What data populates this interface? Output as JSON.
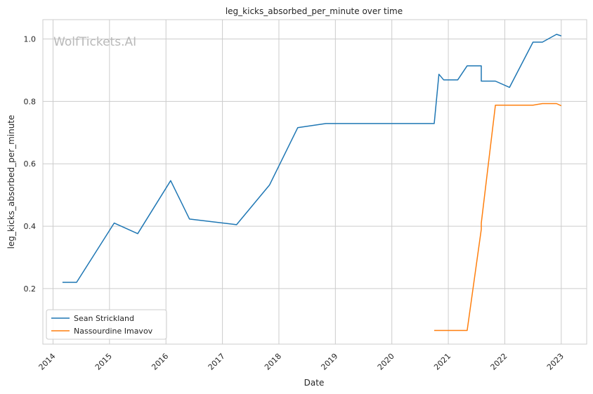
{
  "chart_data": {
    "type": "line",
    "title": "leg_kicks_absorbed_per_minute over time",
    "xlabel": "Date",
    "ylabel": "leg_kicks_absorbed_per_minute",
    "watermark": "WolfTickets.AI",
    "x_ticks": [
      "2014",
      "2015",
      "2016",
      "2017",
      "2018",
      "2019",
      "2020",
      "2021",
      "2022",
      "2023"
    ],
    "y_ticks": [
      "0.2",
      "0.4",
      "0.6",
      "0.8",
      "1.0"
    ],
    "xlim": [
      2013.82,
      2023.45
    ],
    "ylim": [
      0.022,
      1.062
    ],
    "grid": true,
    "legend_position": "lower-left",
    "series": [
      {
        "name": "Sean Strickland",
        "color": "#1f77b4",
        "x": [
          "2014-03",
          "2014-06",
          "2015-02",
          "2015-07",
          "2016-02",
          "2016-06",
          "2017-04",
          "2017-11",
          "2018-05",
          "2018-11",
          "2020-10",
          "2020-11",
          "2020-12",
          "2021-03",
          "2021-05",
          "2021-08",
          "2021-08",
          "2021-11",
          "2022-02",
          "2022-07",
          "2022-09",
          "2022-12",
          "2023-01"
        ],
        "y": [
          0.22,
          0.22,
          0.41,
          0.376,
          0.546,
          0.423,
          0.405,
          0.532,
          0.716,
          0.729,
          0.729,
          0.887,
          0.869,
          0.869,
          0.914,
          0.914,
          0.865,
          0.865,
          0.845,
          0.99,
          0.99,
          1.015,
          1.01
        ]
      },
      {
        "name": "Nassourdine Imavov",
        "color": "#ff7f0e",
        "x": [
          "2020-10",
          "2021-05",
          "2021-08",
          "2021-08",
          "2021-11",
          "2022-07",
          "2022-09",
          "2022-12",
          "2023-01"
        ],
        "y": [
          0.066,
          0.066,
          0.39,
          0.41,
          0.788,
          0.788,
          0.793,
          0.793,
          0.786
        ]
      }
    ]
  }
}
